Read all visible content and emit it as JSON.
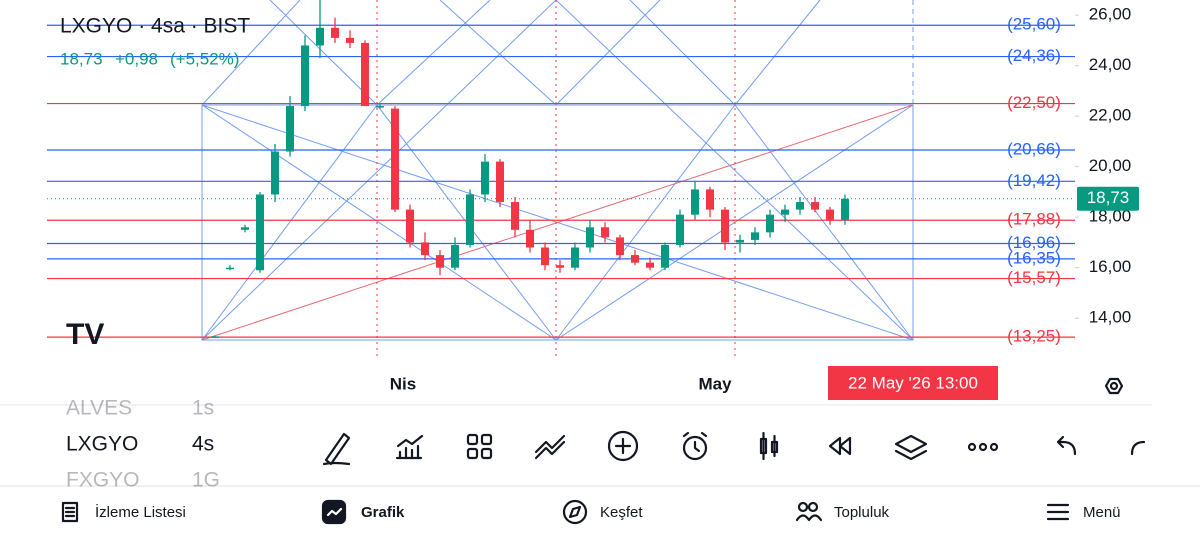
{
  "header": {
    "symbol": "LXGYO · 4sa · BIST",
    "last": "18,73",
    "change": "+0,98",
    "change_pct": "(+5,52%)"
  },
  "chart": {
    "ylim": [
      12.9,
      26.6
    ],
    "yticks": [
      {
        "value": 14,
        "label": "14,00"
      },
      {
        "value": 16,
        "label": "16,00"
      },
      {
        "value": 18,
        "label": "18,00"
      },
      {
        "value": 20,
        "label": "20,00"
      },
      {
        "value": 22,
        "label": "22,00"
      },
      {
        "value": 24,
        "label": "24,00"
      },
      {
        "value": 26,
        "label": "26,00"
      }
    ],
    "levels": [
      {
        "value": 25.6,
        "label": "(25,60)",
        "color": "#2962ff"
      },
      {
        "value": 24.36,
        "label": "(24,36)",
        "color": "#2962ff"
      },
      {
        "value": 22.5,
        "label": "(22,50)",
        "color": "#f23645"
      },
      {
        "value": 20.66,
        "label": "(20,66)",
        "color": "#2962ff"
      },
      {
        "value": 19.42,
        "label": "(19,42)",
        "color": "#2962ff"
      },
      {
        "value": 17.88,
        "label": "(17,88)",
        "color": "#f23645"
      },
      {
        "value": 16.96,
        "label": "(16,96)",
        "color": "#2962ff"
      },
      {
        "value": 16.35,
        "label": "(16,35)",
        "color": "#2962ff"
      },
      {
        "value": 15.57,
        "label": "(15,57)",
        "color": "#f23645"
      },
      {
        "value": 13.25,
        "label": "(13,25)",
        "color": "#f23645"
      }
    ],
    "price": {
      "value": 18.73,
      "label": "18,73"
    },
    "up_color": "#089981",
    "down_color": "#f23645",
    "candles": [
      [
        13.28,
        13.3,
        13.25,
        13.28
      ],
      [
        16.0,
        16.1,
        15.9,
        16.0
      ],
      [
        17.5,
        17.7,
        17.4,
        17.6
      ],
      [
        15.9,
        19.0,
        15.8,
        18.9
      ],
      [
        18.9,
        20.9,
        18.6,
        20.6
      ],
      [
        20.6,
        22.8,
        20.4,
        22.4
      ],
      [
        22.4,
        25.2,
        22.2,
        24.8
      ],
      [
        24.8,
        26.6,
        24.3,
        25.5
      ],
      [
        25.5,
        25.9,
        24.9,
        25.1
      ],
      [
        25.1,
        25.4,
        24.7,
        24.9
      ],
      [
        24.9,
        25.0,
        22.4,
        22.4
      ],
      [
        22.4,
        22.5,
        22.3,
        22.4
      ],
      [
        22.3,
        22.4,
        18.2,
        18.3
      ],
      [
        18.3,
        18.5,
        16.8,
        17.0
      ],
      [
        17.0,
        17.4,
        16.3,
        16.5
      ],
      [
        16.5,
        16.7,
        15.7,
        16.0
      ],
      [
        16.0,
        17.2,
        15.9,
        16.9
      ],
      [
        16.9,
        19.1,
        16.8,
        18.9
      ],
      [
        18.9,
        20.5,
        18.6,
        20.2
      ],
      [
        20.2,
        20.3,
        18.4,
        18.6
      ],
      [
        18.6,
        18.8,
        17.2,
        17.5
      ],
      [
        17.5,
        17.9,
        16.6,
        16.8
      ],
      [
        16.8,
        17.0,
        15.9,
        16.1
      ],
      [
        16.1,
        16.3,
        15.8,
        16.0
      ],
      [
        16.0,
        17.0,
        15.9,
        16.8
      ],
      [
        16.8,
        17.9,
        16.6,
        17.6
      ],
      [
        17.6,
        17.8,
        17.0,
        17.2
      ],
      [
        17.2,
        17.3,
        16.3,
        16.5
      ],
      [
        16.5,
        16.7,
        16.1,
        16.2
      ],
      [
        16.2,
        16.4,
        15.9,
        16.0
      ],
      [
        16.0,
        17.0,
        15.9,
        16.9
      ],
      [
        16.9,
        18.3,
        16.8,
        18.1
      ],
      [
        18.1,
        19.4,
        17.9,
        19.1
      ],
      [
        19.1,
        19.2,
        18.0,
        18.3
      ],
      [
        18.3,
        18.4,
        16.7,
        17.0
      ],
      [
        17.0,
        17.3,
        16.6,
        17.1
      ],
      [
        17.1,
        17.6,
        16.9,
        17.4
      ],
      [
        17.4,
        18.3,
        17.2,
        18.1
      ],
      [
        18.1,
        18.5,
        17.8,
        18.3
      ],
      [
        18.3,
        18.8,
        18.1,
        18.6
      ],
      [
        18.6,
        18.8,
        18.2,
        18.3
      ],
      [
        18.3,
        18.4,
        17.7,
        17.9
      ],
      [
        17.9,
        18.9,
        17.7,
        18.73
      ]
    ],
    "x_labels": [
      "Nis",
      "May"
    ],
    "crosshair_date": "22 May '26   13:00"
  },
  "symbols": [
    {
      "name": "ALVES",
      "interval": "1s"
    },
    {
      "name": "LXGYO",
      "interval": "4s"
    },
    {
      "name": "FXGYO",
      "interval": "1G"
    }
  ],
  "nav": [
    "İzleme Listesi",
    "Grafik",
    "Keşfet",
    "Topluluk",
    "Menü"
  ]
}
